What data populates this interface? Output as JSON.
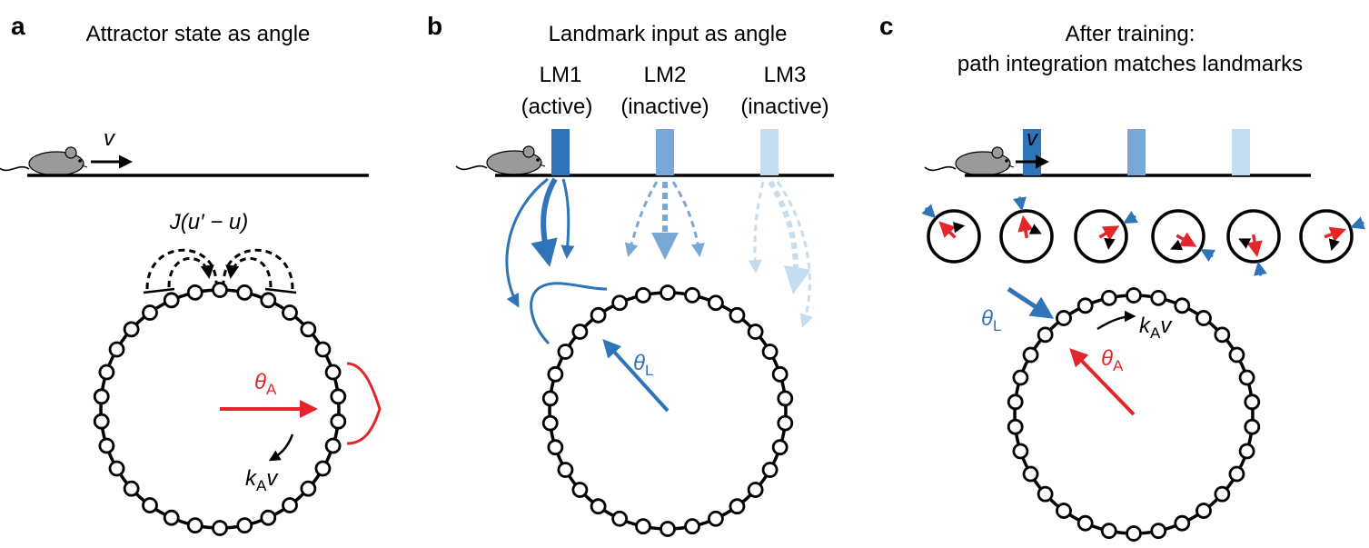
{
  "panels": [
    {
      "letter": "a",
      "title": "Attractor state as angle"
    },
    {
      "letter": "b",
      "title": "Landmark input as angle"
    },
    {
      "letter": "c",
      "title_line1": "After training:",
      "title_line2": "path integration matches landmarks"
    }
  ],
  "landmarks": [
    {
      "name": "LM1",
      "status": "(active)"
    },
    {
      "name": "LM2",
      "status": "(inactive)"
    },
    {
      "name": "LM3",
      "status": "(inactive)"
    }
  ],
  "symbols": {
    "velocity": "v",
    "coupling": "J(u′ − u)",
    "theta": "θ",
    "sub_A": "A",
    "sub_L": "L",
    "k": "k"
  },
  "colors": {
    "red": "#e3262b",
    "blue_dark": "#2f74b9",
    "blue_mid": "#79a8d6",
    "blue_light": "#c6dcef",
    "mouse": "#9a9a9a"
  }
}
